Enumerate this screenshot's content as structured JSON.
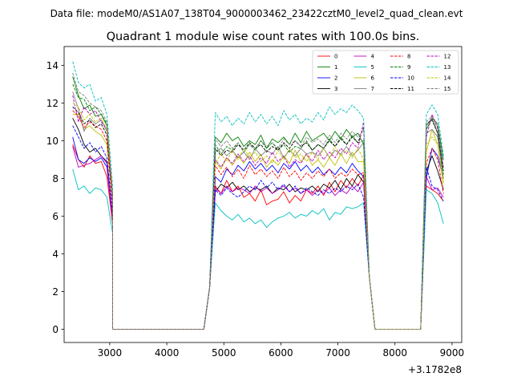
{
  "suptitle": "Data file: modeM0/AS1A07_138T04_9000003462_23422cztM0_level2_quad_clean.evt",
  "chart_data": {
    "type": "line",
    "title": "Quadrant 1 module wise count rates with 100.0s bins.",
    "xlabel": "",
    "ylabel": "",
    "x_offset_label": "+3.1782e8",
    "xlim": [
      2200,
      9170
    ],
    "ylim": [
      -0.7,
      15.0
    ],
    "xticks": [
      3000,
      4000,
      5000,
      6000,
      7000,
      8000,
      9000
    ],
    "xtick_labels": [
      "3000",
      "4000",
      "5000",
      "6000",
      "7000",
      "8000",
      "9000"
    ],
    "yticks": [
      0,
      2,
      4,
      6,
      8,
      10,
      12,
      14
    ],
    "ytick_labels": [
      "0",
      "2",
      "4",
      "6",
      "8",
      "10",
      "12",
      "14"
    ],
    "grid": false,
    "legend_position": "top-right",
    "legend_columns": 4,
    "series": [
      {
        "name": "0",
        "color": "#ff0000",
        "style": "solid",
        "seg1": [
          9.8,
          9.0,
          8.6,
          9.2,
          8.8,
          8.9,
          8.1,
          5.6
        ],
        "mid": [
          7.0,
          7.6,
          7.2,
          7.9,
          7.3,
          7.6,
          7.0,
          7.2,
          6.8,
          7.4,
          6.6,
          6.8,
          6.9,
          7.3,
          6.7,
          7.1,
          6.8,
          7.4,
          7.2,
          7.6,
          7.1,
          7.8,
          7.3,
          7.9,
          7.5,
          8.0,
          7.6,
          8.2
        ],
        "seg3": [
          7.6,
          7.4,
          7.2,
          6.8
        ]
      },
      {
        "name": "1",
        "color": "#008000",
        "style": "solid",
        "seg1": [
          13.4,
          12.4,
          11.7,
          11.9,
          11.3,
          11.4,
          10.8,
          7.0
        ],
        "mid": [
          10.4,
          10.2,
          9.9,
          10.4,
          10.0,
          10.2,
          9.7,
          10.0,
          9.8,
          10.3,
          9.6,
          10.1,
          9.9,
          10.2,
          9.8,
          10.4,
          9.9,
          10.5,
          10.0,
          10.2,
          10.4,
          10.0,
          10.5,
          10.1,
          10.6,
          10.2,
          10.4,
          9.8
        ],
        "seg3": [
          10.6,
          11.2,
          10.9,
          9.0
        ]
      },
      {
        "name": "2",
        "color": "#0000ff",
        "style": "solid",
        "seg1": [
          10.2,
          9.0,
          8.8,
          9.1,
          8.9,
          9.1,
          8.6,
          5.8
        ],
        "mid": [
          7.6,
          8.1,
          7.8,
          8.5,
          8.2,
          8.7,
          8.4,
          8.9,
          8.5,
          8.8,
          8.4,
          8.7,
          8.3,
          8.8,
          8.5,
          8.9,
          8.4,
          8.7,
          8.3,
          8.6,
          8.2,
          8.5,
          8.2,
          8.6,
          8.3,
          8.8,
          8.4,
          8.1
        ],
        "seg3": [
          8.0,
          9.6,
          9.2,
          8.0
        ]
      },
      {
        "name": "3",
        "color": "#000000",
        "style": "solid",
        "seg1": [
          11.2,
          10.6,
          9.8,
          9.4,
          9.6,
          9.2,
          8.9,
          5.9
        ],
        "mid": [
          7.5,
          7.3,
          7.7,
          7.5,
          7.8,
          7.4,
          7.6,
          7.3,
          7.5,
          7.4,
          7.6,
          7.2,
          7.5,
          7.4,
          7.7,
          7.3,
          7.5,
          7.4,
          7.6,
          7.3,
          7.7,
          7.5,
          7.9,
          7.4,
          8.0,
          7.6,
          8.2,
          7.8
        ],
        "seg3": [
          8.4,
          9.2,
          8.4,
          7.4
        ]
      },
      {
        "name": "4",
        "color": "#bf00bf",
        "style": "solid",
        "seg1": [
          9.7,
          8.6,
          8.7,
          8.8,
          9.0,
          9.2,
          8.8,
          5.8
        ],
        "mid": [
          7.3,
          7.5,
          7.2,
          7.6,
          7.3,
          7.5,
          7.4,
          7.2,
          7.6,
          7.3,
          7.5,
          7.2,
          7.4,
          7.6,
          7.3,
          7.5,
          7.2,
          7.4,
          7.1,
          7.4,
          7.2,
          7.5,
          7.1,
          7.4,
          7.2,
          7.6,
          7.3,
          7.8
        ],
        "seg3": [
          8.1,
          7.4,
          7.5,
          7.0
        ]
      },
      {
        "name": "5",
        "color": "#00bfbf",
        "style": "solid",
        "seg1": [
          8.5,
          7.4,
          7.6,
          7.2,
          7.5,
          7.4,
          7.0,
          5.1
        ],
        "mid": [
          6.4,
          6.7,
          6.3,
          6.0,
          5.8,
          6.1,
          5.7,
          5.9,
          5.6,
          5.8,
          5.4,
          5.7,
          5.9,
          6.0,
          6.2,
          5.9,
          6.1,
          6.0,
          6.3,
          6.1,
          6.4,
          5.8,
          6.2,
          6.1,
          6.5,
          6.4,
          6.5,
          6.7
        ],
        "seg3": [
          7.4,
          7.2,
          6.7,
          5.6
        ]
      },
      {
        "name": "6",
        "color": "#bfbf00",
        "style": "solid",
        "seg1": [
          11.4,
          11.4,
          10.6,
          10.8,
          10.5,
          10.3,
          9.8,
          6.8
        ],
        "mid": [
          8.6,
          8.9,
          8.5,
          9.1,
          8.7,
          9.2,
          8.8,
          9.4,
          8.9,
          9.3,
          8.6,
          9.0,
          8.7,
          9.2,
          8.8,
          9.5,
          8.9,
          9.3,
          8.7,
          9.0,
          8.6,
          9.1,
          8.7,
          9.3,
          8.8,
          9.4,
          8.9,
          8.9
        ],
        "seg3": [
          9.4,
          10.6,
          9.8,
          7.8
        ]
      },
      {
        "name": "7",
        "color": "#808080",
        "style": "solid",
        "seg1": [
          12.6,
          11.7,
          10.5,
          11.2,
          10.9,
          11.1,
          10.5,
          7.0
        ],
        "mid": [
          9.8,
          9.4,
          9.6,
          9.2,
          9.5,
          9.1,
          9.4,
          9.0,
          9.6,
          9.2,
          9.5,
          9.3,
          9.7,
          9.1,
          9.5,
          9.2,
          9.6,
          9.3,
          9.4,
          9.2,
          9.6,
          9.1,
          9.5,
          9.3,
          9.7,
          9.2,
          9.5,
          9.9
        ],
        "seg3": [
          10.4,
          10.6,
          10.2,
          8.0
        ]
      },
      {
        "name": "8",
        "color": "#ff0000",
        "style": "dashed",
        "seg1": [
          11.6,
          11.3,
          10.7,
          11.0,
          10.8,
          10.6,
          10.0,
          6.6
        ],
        "mid": [
          8.3,
          8.7,
          8.2,
          8.6,
          8.1,
          8.5,
          8.0,
          8.7,
          8.2,
          8.5,
          8.1,
          8.4,
          8.0,
          8.6,
          8.1,
          8.4,
          7.9,
          8.3,
          8.0,
          8.4,
          8.1,
          8.5,
          8.0,
          8.3,
          8.1,
          8.5,
          8.2,
          8.3
        ],
        "seg3": [
          8.8,
          9.6,
          9.0,
          7.2
        ]
      },
      {
        "name": "9",
        "color": "#008000",
        "style": "dashed",
        "seg1": [
          13.0,
          12.3,
          12.2,
          11.6,
          11.8,
          11.4,
          10.9,
          7.2
        ],
        "mid": [
          9.4,
          9.8,
          9.3,
          9.7,
          9.5,
          9.9,
          9.4,
          9.8,
          9.5,
          10.0,
          9.6,
          9.9,
          9.5,
          9.8,
          9.4,
          9.7,
          9.6,
          10.0,
          9.5,
          9.8,
          9.6,
          10.1,
          9.7,
          10.2,
          9.8,
          10.3,
          9.9,
          10.0
        ],
        "seg3": [
          10.8,
          11.2,
          10.4,
          8.2
        ]
      },
      {
        "name": "10",
        "color": "#0000ff",
        "style": "dashed",
        "seg1": [
          10.8,
          10.2,
          9.6,
          9.9,
          9.4,
          9.7,
          9.1,
          6.2
        ],
        "mid": [
          7.6,
          7.4,
          7.1,
          7.5,
          7.2,
          7.0,
          7.3,
          7.6,
          7.4,
          7.9,
          7.5,
          7.8,
          7.4,
          7.7,
          7.3,
          7.6,
          7.2,
          7.5,
          7.3,
          7.1,
          7.4,
          7.2,
          7.5,
          7.3,
          7.6,
          7.4,
          7.7,
          7.0
        ],
        "seg3": [
          8.6,
          7.6,
          7.4,
          6.8
        ]
      },
      {
        "name": "11",
        "color": "#000000",
        "style": "dashed",
        "seg1": [
          11.8,
          11.5,
          10.9,
          11.1,
          10.7,
          10.9,
          10.3,
          6.9
        ],
        "mid": [
          9.3,
          9.6,
          9.2,
          9.5,
          9.4,
          9.8,
          9.5,
          9.9,
          9.6,
          9.8,
          9.4,
          9.7,
          9.5,
          9.9,
          9.6,
          10.0,
          9.7,
          9.9,
          9.5,
          9.8,
          9.6,
          10.0,
          9.7,
          10.1,
          9.8,
          10.2,
          9.9,
          10.7
        ],
        "seg3": [
          10.9,
          11.1,
          10.4,
          8.4
        ]
      },
      {
        "name": "12",
        "color": "#bf00bf",
        "style": "dashed",
        "seg1": [
          12.4,
          11.0,
          11.8,
          11.4,
          11.6,
          11.0,
          10.6,
          7.0
        ],
        "mid": [
          8.7,
          9.0,
          8.6,
          9.1,
          8.8,
          9.3,
          8.9,
          9.2,
          8.7,
          9.1,
          8.8,
          9.4,
          8.9,
          9.2,
          8.6,
          9.0,
          8.8,
          9.3,
          8.9,
          9.5,
          9.0,
          9.4,
          9.1,
          9.6,
          9.3,
          9.9,
          9.6,
          11.0
        ],
        "seg3": [
          10.2,
          11.4,
          10.7,
          8.6
        ]
      },
      {
        "name": "13",
        "color": "#00bfbf",
        "style": "dashed",
        "seg1": [
          14.2,
          13.1,
          12.8,
          13.0,
          12.1,
          12.3,
          11.4,
          7.6
        ],
        "mid": [
          11.4,
          11.5,
          11.0,
          11.3,
          10.8,
          11.2,
          10.9,
          11.5,
          11.0,
          11.4,
          10.9,
          11.3,
          10.8,
          11.6,
          11.1,
          11.4,
          10.9,
          11.2,
          11.0,
          11.5,
          11.1,
          11.8,
          11.4,
          11.7,
          11.5,
          11.9,
          11.6,
          11.2
        ],
        "seg3": [
          11.4,
          11.9,
          11.4,
          9.2
        ]
      },
      {
        "name": "14",
        "color": "#bfbf00",
        "style": "dashed",
        "seg1": [
          12.0,
          11.8,
          11.1,
          11.4,
          11.0,
          11.2,
          10.6,
          7.0
        ],
        "mid": [
          9.2,
          8.8,
          9.3,
          8.9,
          9.5,
          9.0,
          9.6,
          9.1,
          9.4,
          8.9,
          9.2,
          8.8,
          9.5,
          9.0,
          9.6,
          9.1,
          9.3,
          8.9,
          9.4,
          9.0,
          9.6,
          9.1,
          9.7,
          9.2,
          9.5,
          9.1,
          9.6,
          9.0
        ],
        "seg3": [
          9.8,
          10.2,
          9.8,
          7.6
        ]
      },
      {
        "name": "15",
        "color": "#808080",
        "style": "dashed",
        "seg1": [
          13.6,
          12.6,
          12.4,
          12.0,
          11.8,
          11.6,
          11.0,
          7.2
        ],
        "mid": [
          9.8,
          10.1,
          9.7,
          10.0,
          9.6,
          9.9,
          9.5,
          9.8,
          9.6,
          10.0,
          9.7,
          9.9,
          9.6,
          10.1,
          9.8,
          10.0,
          9.7,
          10.2,
          9.9,
          10.1,
          9.8,
          10.3,
          9.9,
          10.4,
          10.1,
          10.5,
          10.2,
          10.6
        ],
        "seg3": [
          11.0,
          11.3,
          10.6,
          8.6
        ]
      }
    ]
  }
}
